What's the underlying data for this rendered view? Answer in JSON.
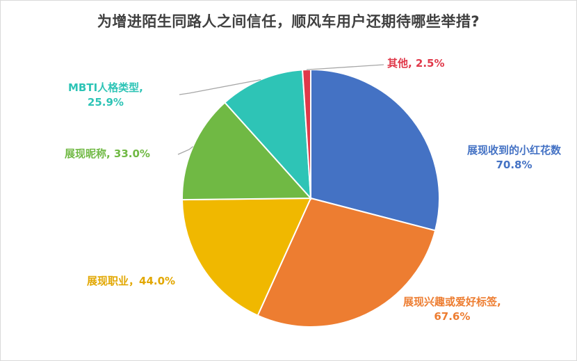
{
  "chart_data": {
    "type": "pie",
    "title": "为增进陌生同路人之间信任，顺风车用户还期待哪些举措?",
    "series": [
      {
        "name": "展现收到的小红花数",
        "value": 70.8,
        "display": "70.8%",
        "color": "#4472c4"
      },
      {
        "name": "展现兴趣或爱好标签",
        "value": 67.6,
        "display": "67.6%",
        "color": "#ed7d31"
      },
      {
        "name": "展现职业",
        "value": 44.0,
        "display": "44.0%",
        "color": "#f0b800"
      },
      {
        "name": "展现昵称",
        "value": 33.0,
        "display": "33.0%",
        "color": "#70b944"
      },
      {
        "name": "MBTI人格类型",
        "value": 25.9,
        "display": "25.9%",
        "color": "#2ec4b6"
      },
      {
        "name": "其他",
        "value": 2.5,
        "display": "2.5%",
        "color": "#e0394a"
      }
    ],
    "labels": [
      {
        "line1": "展现收到的小红花数",
        "line2": "70.8%"
      },
      {
        "line1": "展现兴趣或爱好标签,",
        "line2": "67.6%"
      },
      {
        "line1": "展现职业，44.0%",
        "line2": ""
      },
      {
        "line1": "展现昵称, 33.0%",
        "line2": ""
      },
      {
        "line1": "MBTI人格类型,",
        "line2": "25.9%"
      },
      {
        "line1": "其他, 2.5%",
        "line2": ""
      }
    ],
    "legend": "none"
  }
}
